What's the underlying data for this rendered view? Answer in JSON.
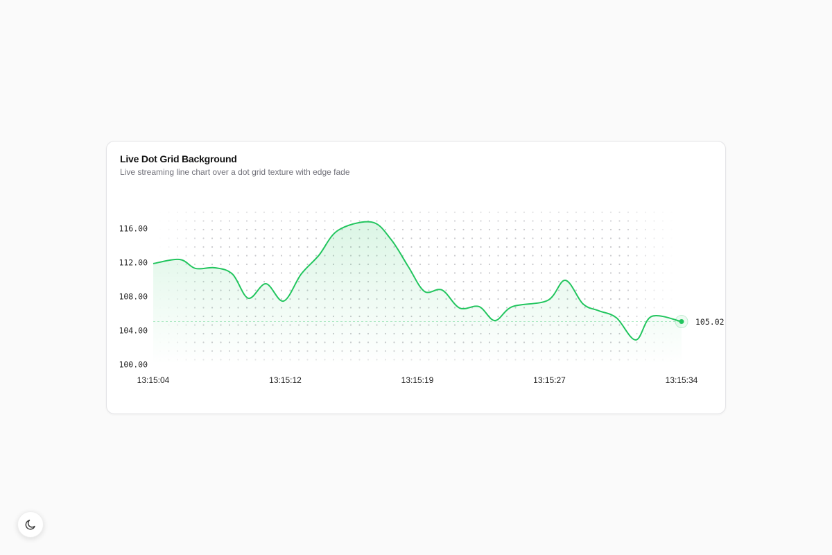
{
  "chart_data": {
    "type": "line",
    "title": "Live Dot Grid Background",
    "subtitle": "Live streaming line chart over a dot grid texture with edge fade",
    "x": [
      4,
      5.5,
      6.4,
      7.5,
      8.5,
      9.4,
      10.4,
      11.4,
      12.4,
      13.4,
      14.5,
      16.4,
      17.5,
      18.5,
      19.4,
      20.4,
      21.4,
      22.5,
      23.4,
      24.4,
      26.4,
      27.4,
      28.4,
      29.3,
      30.3,
      31.4,
      32.3,
      34
    ],
    "values": [
      111.84,
      112.33,
      111.27,
      111.35,
      110.6,
      107.76,
      109.47,
      107.43,
      110.6,
      112.8,
      115.76,
      116.73,
      114.69,
      111.43,
      108.57,
      108.73,
      106.61,
      106.78,
      105.14,
      106.78,
      107.51,
      109.88,
      107.1,
      106.29,
      105.47,
      102.86,
      105.63,
      105.02
    ],
    "color": "#22c55e",
    "xlim": [
      4,
      34
    ],
    "xticks": [
      {
        "value": 4,
        "label": "13:15:04"
      },
      {
        "value": 11.5,
        "label": "13:15:12"
      },
      {
        "value": 19,
        "label": "13:15:19"
      },
      {
        "value": 26.5,
        "label": "13:15:27"
      },
      {
        "value": 34,
        "label": "13:15:34"
      }
    ],
    "ylim": [
      100,
      118
    ],
    "yticks": [
      {
        "value": 100,
        "label": "100.00"
      },
      {
        "value": 104,
        "label": "104.00"
      },
      {
        "value": 108,
        "label": "108.00"
      },
      {
        "value": 112,
        "label": "112.00"
      },
      {
        "value": 116,
        "label": "116.00"
      }
    ],
    "grid": true
  }
}
